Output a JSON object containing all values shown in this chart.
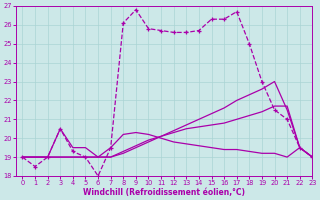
{
  "xlabel": "Windchill (Refroidissement éolien,°C)",
  "background_color": "#cce8e8",
  "grid_color": "#aad4d4",
  "line_color": "#aa00aa",
  "xlim": [
    -0.5,
    23
  ],
  "ylim": [
    18,
    27
  ],
  "xticks": [
    0,
    1,
    2,
    3,
    4,
    5,
    6,
    7,
    8,
    9,
    10,
    11,
    12,
    13,
    14,
    15,
    16,
    17,
    18,
    19,
    20,
    21,
    22,
    23
  ],
  "yticks": [
    18,
    19,
    20,
    21,
    22,
    23,
    24,
    25,
    26,
    27
  ],
  "lines": [
    {
      "x": [
        0,
        1,
        2,
        3,
        4,
        5,
        6,
        7,
        8,
        9,
        10,
        11,
        12,
        13,
        14,
        15,
        16,
        17,
        18,
        19,
        20,
        21,
        22,
        23
      ],
      "y": [
        19,
        18.5,
        19,
        20.5,
        19.3,
        19,
        18,
        19.5,
        26.1,
        26.8,
        25.8,
        25.7,
        25.6,
        25.6,
        25.7,
        26.3,
        26.3,
        26.7,
        25.0,
        23.0,
        21.5,
        21.0,
        19.5,
        19.0
      ],
      "marker": "+",
      "linestyle": "--",
      "linewidth": 0.9
    },
    {
      "x": [
        0,
        1,
        2,
        3,
        4,
        5,
        6,
        7,
        8,
        9,
        10,
        11,
        12,
        13,
        14,
        15,
        16,
        17,
        18,
        19,
        20,
        21,
        22,
        23
      ],
      "y": [
        19,
        19,
        19,
        19,
        19,
        19,
        19,
        19,
        19.2,
        19.5,
        19.8,
        20.1,
        20.4,
        20.7,
        21.0,
        21.3,
        21.6,
        22.0,
        22.3,
        22.6,
        23.0,
        21.5,
        19.5,
        19.0
      ],
      "marker": null,
      "linestyle": "-",
      "linewidth": 0.9
    },
    {
      "x": [
        0,
        1,
        2,
        3,
        4,
        5,
        6,
        7,
        8,
        9,
        10,
        11,
        12,
        13,
        14,
        15,
        16,
        17,
        18,
        19,
        20,
        21,
        22,
        23
      ],
      "y": [
        19,
        19,
        19,
        19,
        19,
        19,
        19,
        19,
        19.3,
        19.6,
        19.9,
        20.1,
        20.3,
        20.5,
        20.6,
        20.7,
        20.8,
        21.0,
        21.2,
        21.4,
        21.7,
        21.7,
        19.5,
        19.0
      ],
      "marker": null,
      "linestyle": "-",
      "linewidth": 0.9
    },
    {
      "x": [
        0,
        1,
        2,
        3,
        4,
        5,
        6,
        7,
        8,
        9,
        10,
        11,
        12,
        13,
        14,
        15,
        16,
        17,
        18,
        19,
        20,
        21,
        22,
        23
      ],
      "y": [
        19,
        19,
        19,
        20.5,
        19.5,
        19.5,
        19.0,
        19.5,
        20.2,
        20.3,
        20.2,
        20.0,
        19.8,
        19.7,
        19.6,
        19.5,
        19.4,
        19.4,
        19.3,
        19.2,
        19.2,
        19.0,
        19.5,
        19.0
      ],
      "marker": null,
      "linestyle": "-",
      "linewidth": 0.9
    }
  ]
}
